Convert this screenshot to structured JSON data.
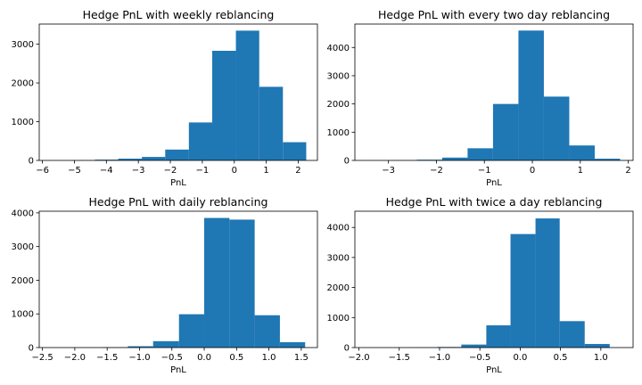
{
  "figure": {
    "background": "#ffffff",
    "bar_color": "#1f77b4"
  },
  "chart_data": [
    {
      "type": "bar",
      "title": "Hedge PnL with weekly reblancing",
      "xlabel": "PnL",
      "ylabel": "",
      "xlim": [
        -6.1,
        2.6
      ],
      "ylim": [
        0,
        3520
      ],
      "xticks": [
        -6,
        -5,
        -4,
        -3,
        -2,
        -1,
        0,
        1,
        2
      ],
      "yticks": [
        0,
        1000,
        2000,
        3000
      ],
      "bin_edges": [
        -5.1,
        -4.36,
        -3.63,
        -2.89,
        -2.16,
        -1.42,
        -0.69,
        0.05,
        0.78,
        1.52,
        2.25
      ],
      "values": [
        5,
        20,
        45,
        90,
        280,
        980,
        2830,
        3350,
        1900,
        470
      ]
    },
    {
      "type": "bar",
      "title": "Hedge PnL with every two day reblancing",
      "xlabel": "PnL",
      "ylabel": "",
      "xlim": [
        -3.7,
        2.1
      ],
      "ylim": [
        0,
        4830
      ],
      "xticks": [
        -3,
        -2,
        -1,
        0,
        1,
        2
      ],
      "yticks": [
        0,
        1000,
        2000,
        3000,
        4000
      ],
      "bin_edges": [
        -3.47,
        -2.94,
        -2.41,
        -1.88,
        -1.35,
        -0.82,
        -0.29,
        0.24,
        0.77,
        1.3,
        1.83
      ],
      "values": [
        2,
        5,
        25,
        100,
        430,
        2000,
        4600,
        2260,
        530,
        60
      ]
    },
    {
      "type": "bar",
      "title": "Hedge PnL with daily reblancing",
      "xlabel": "PnL",
      "ylabel": "",
      "xlim": [
        -2.55,
        1.75
      ],
      "ylim": [
        0,
        4050
      ],
      "xticks": [
        -2.5,
        -2.0,
        -1.5,
        -1.0,
        -0.5,
        0.0,
        0.5,
        1.0,
        1.5
      ],
      "yticks": [
        0,
        1000,
        2000,
        3000,
        4000
      ],
      "bin_edges": [
        -2.35,
        -1.96,
        -1.57,
        -1.18,
        -0.79,
        -0.39,
        0.0,
        0.39,
        0.78,
        1.17,
        1.56
      ],
      "values": [
        1,
        3,
        10,
        40,
        190,
        990,
        3850,
        3800,
        960,
        160
      ]
    },
    {
      "type": "bar",
      "title": "Hedge PnL with twice a day reblancing",
      "xlabel": "PnL",
      "ylabel": "",
      "xlim": [
        -2.05,
        1.4
      ],
      "ylim": [
        0,
        4540
      ],
      "xticks": [
        -2.0,
        -1.5,
        -1.0,
        -0.5,
        0.0,
        0.5,
        1.0
      ],
      "yticks": [
        0,
        1000,
        2000,
        3000,
        4000
      ],
      "bin_edges": [
        -1.95,
        -1.64,
        -1.34,
        -1.03,
        -0.73,
        -0.42,
        -0.12,
        0.19,
        0.49,
        0.8,
        1.11
      ],
      "values": [
        0,
        1,
        5,
        20,
        100,
        740,
        3780,
        4300,
        880,
        120
      ]
    }
  ]
}
